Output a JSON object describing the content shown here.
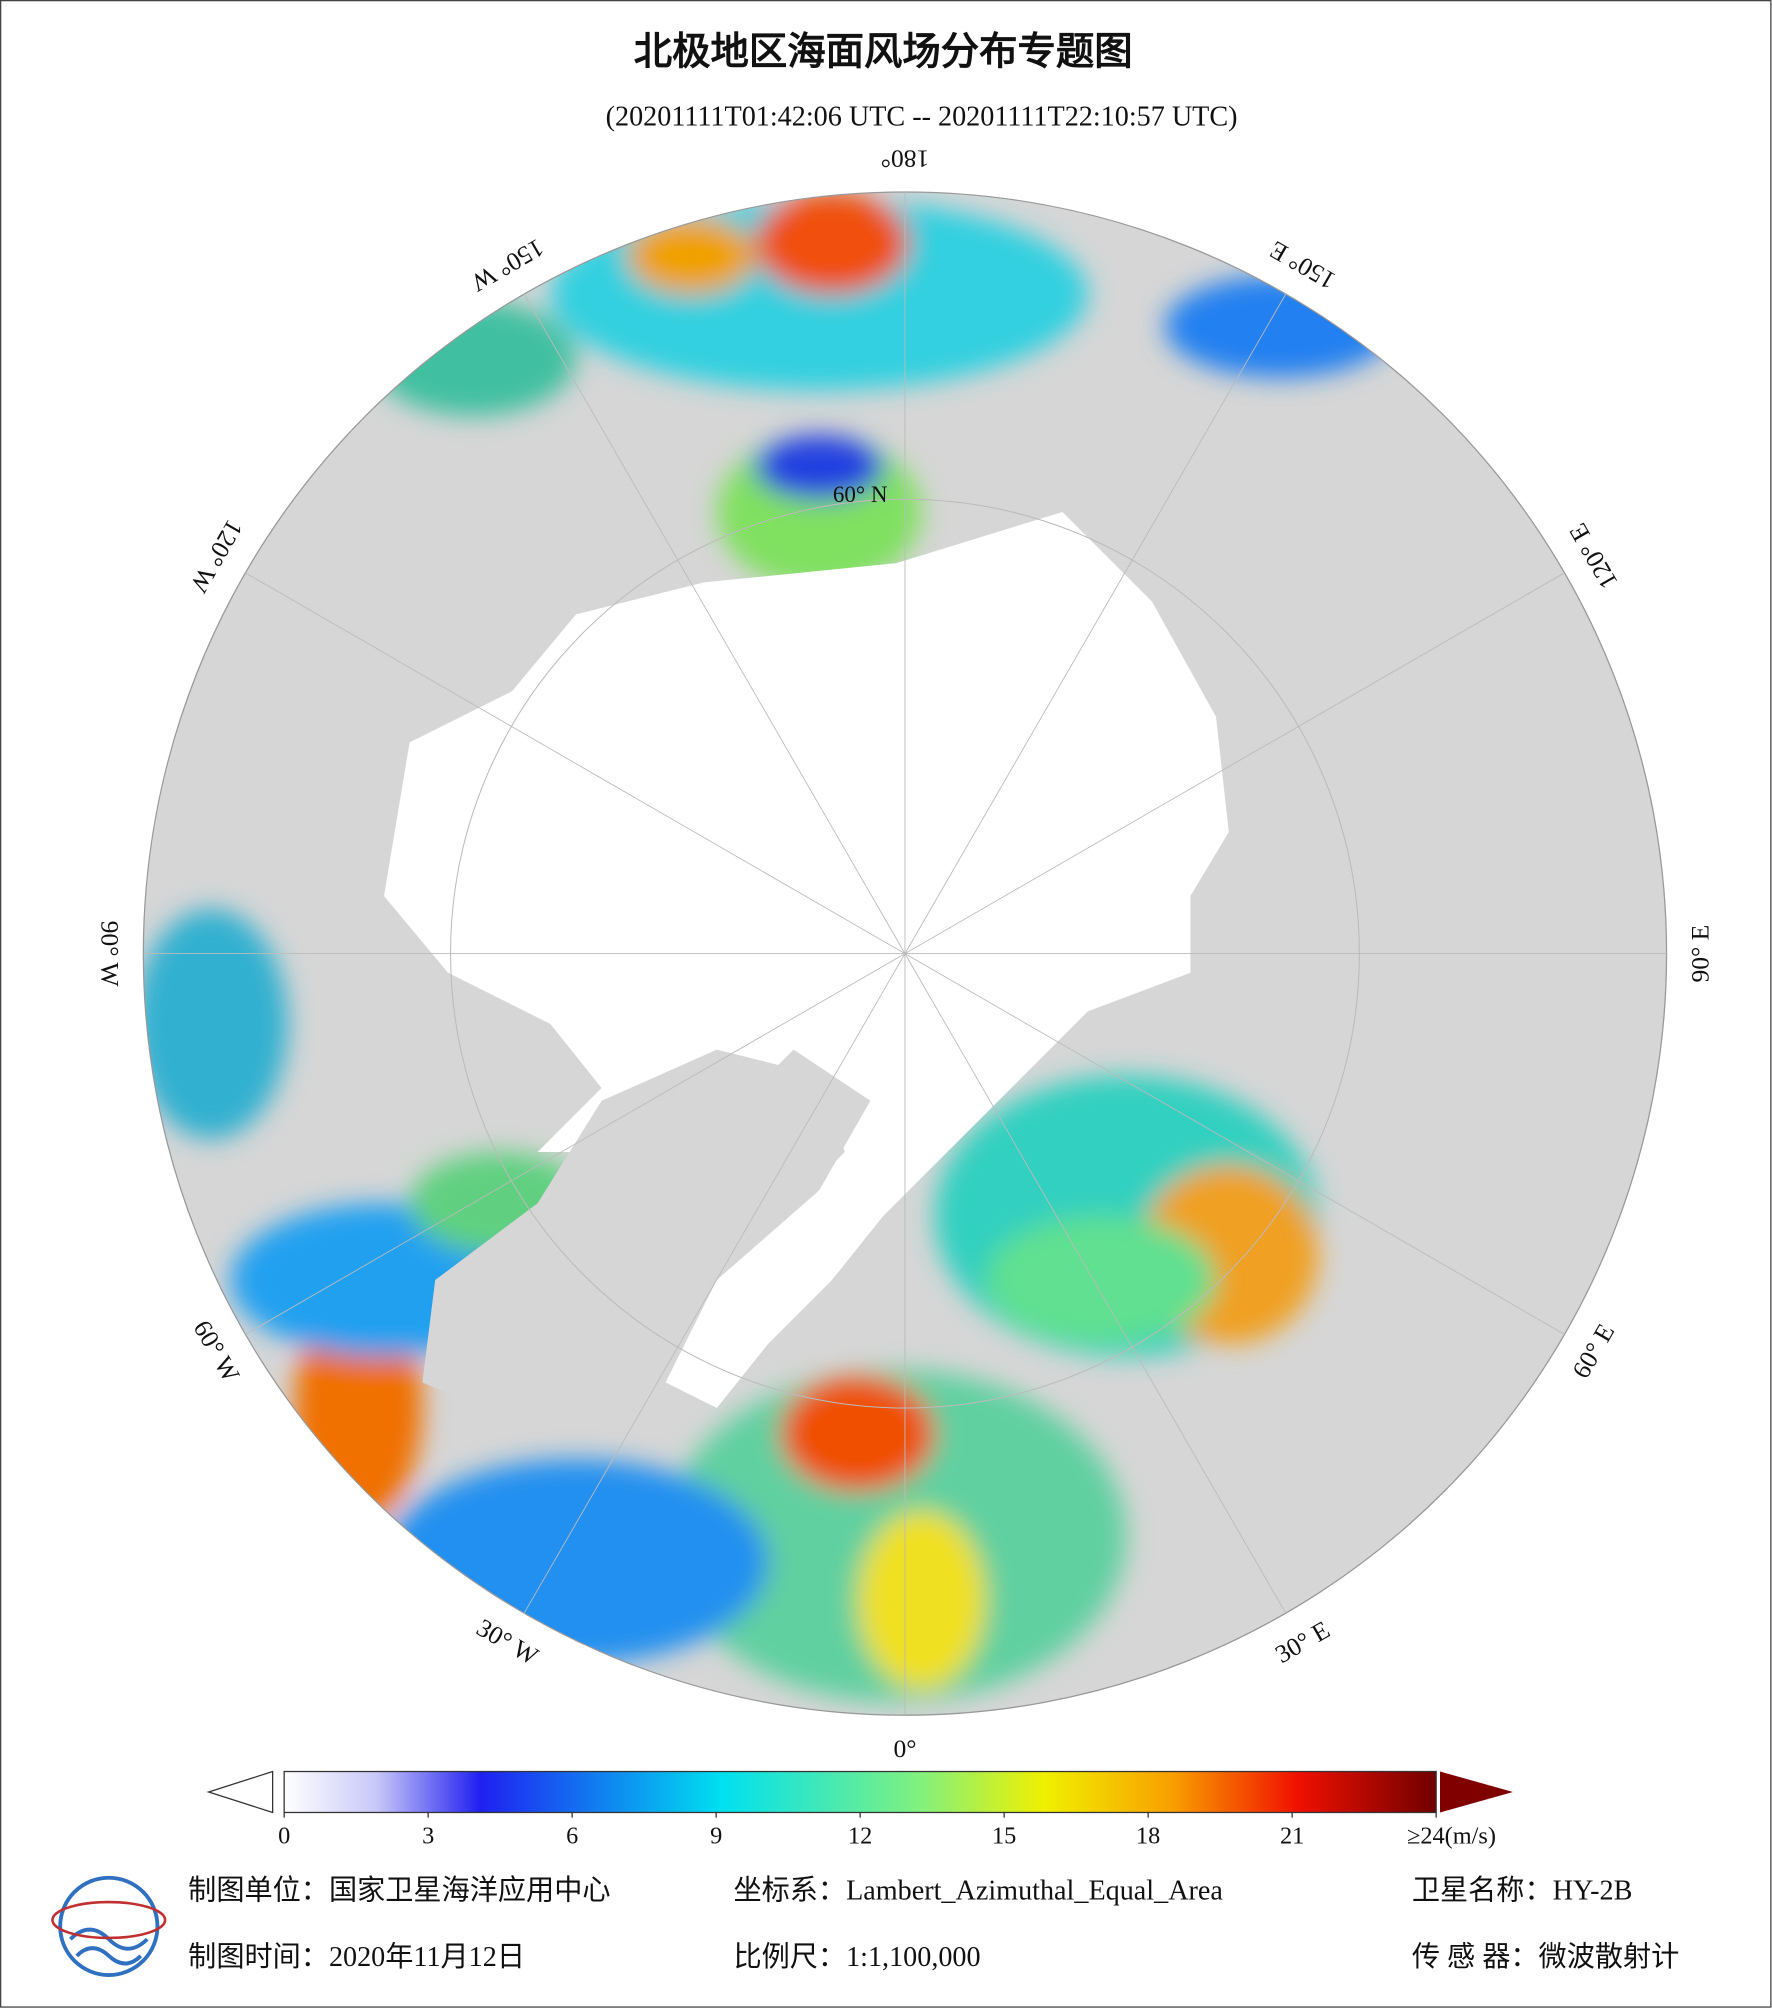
{
  "header": {
    "title": "北极地区海面风场分布专题图",
    "subtitle": "(20201111T01:42:06 UTC -- 20201111T22:10:57 UTC)"
  },
  "graticule": {
    "lon_labels": [
      {
        "value": 180,
        "label": "180°"
      },
      {
        "value": 150,
        "label": "150° E"
      },
      {
        "value": 120,
        "label": "120° E"
      },
      {
        "value": 90,
        "label": "90° E"
      },
      {
        "value": 60,
        "label": "60° E"
      },
      {
        "value": 30,
        "label": "30° E"
      },
      {
        "value": 0,
        "label": "0°"
      },
      {
        "value": -30,
        "label": "30° W"
      },
      {
        "value": -60,
        "label": "60° W"
      },
      {
        "value": -90,
        "label": "90° W"
      },
      {
        "value": -120,
        "label": "120° W"
      },
      {
        "value": -150,
        "label": "150° W"
      }
    ],
    "lat_label": "60° N"
  },
  "colorbar": {
    "range": [
      0,
      24
    ],
    "ticks": [
      0,
      3,
      6,
      9,
      12,
      15,
      18,
      21,
      {
        "value": 24,
        "label": "≥24(m/s)"
      }
    ]
  },
  "footer": {
    "unit": "制图单位：国家卫星海洋应用中心",
    "crs": "坐标系：Lambert_Azimuthal_Equal_Area",
    "satellite": "卫星名称：HY-2B",
    "date": "制图时间：2020年11月12日",
    "scale": "比例尺：1:1,100,000",
    "sensor": "传 感 器：微波散射计"
  }
}
